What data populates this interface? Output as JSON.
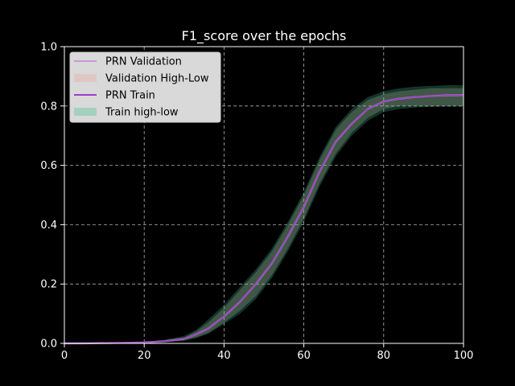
{
  "chart_data": {
    "type": "line",
    "title": "F1_score over the epochs",
    "xlabel": "",
    "ylabel": "",
    "xlim": [
      0,
      100
    ],
    "ylim": [
      0,
      1.0
    ],
    "x_ticks": [
      0,
      20,
      40,
      60,
      80,
      100
    ],
    "y_ticks": [
      0.0,
      0.2,
      0.4,
      0.6,
      0.8,
      1.0
    ],
    "x_tick_labels": [
      "0",
      "20",
      "40",
      "60",
      "80",
      "100"
    ],
    "y_tick_labels": [
      "0.0",
      "0.2",
      "0.4",
      "0.6",
      "0.8",
      "1.0"
    ],
    "grid": true,
    "legend_position": "top-left",
    "background": "#000000",
    "x": [
      0,
      5,
      10,
      15,
      20,
      25,
      30,
      33,
      36,
      40,
      44,
      48,
      52,
      56,
      60,
      64,
      68,
      72,
      76,
      80,
      84,
      88,
      92,
      96,
      100
    ],
    "series": [
      {
        "name": "PRN Validation",
        "kind": "line",
        "color": "#c78fd6",
        "values": [
          0.0,
          0.0,
          0.001,
          0.002,
          0.003,
          0.007,
          0.015,
          0.03,
          0.05,
          0.09,
          0.14,
          0.2,
          0.27,
          0.36,
          0.46,
          0.58,
          0.68,
          0.74,
          0.79,
          0.815,
          0.825,
          0.83,
          0.834,
          0.836,
          0.837
        ]
      },
      {
        "name": "Validation High-Low",
        "kind": "band",
        "color": "#e8a598",
        "low": [
          0.0,
          0.0,
          0.0,
          0.001,
          0.002,
          0.005,
          0.01,
          0.02,
          0.035,
          0.07,
          0.11,
          0.16,
          0.23,
          0.32,
          0.42,
          0.54,
          0.64,
          0.71,
          0.76,
          0.79,
          0.8,
          0.8,
          0.8,
          0.8,
          0.8
        ],
        "high": [
          0.001,
          0.001,
          0.002,
          0.003,
          0.005,
          0.01,
          0.02,
          0.04,
          0.07,
          0.12,
          0.18,
          0.24,
          0.31,
          0.4,
          0.5,
          0.62,
          0.72,
          0.78,
          0.82,
          0.84,
          0.85,
          0.855,
          0.86,
          0.86,
          0.86
        ]
      },
      {
        "name": "PRN Train",
        "kind": "line",
        "color": "#9a3fc7",
        "values": [
          0.0,
          0.0,
          0.001,
          0.002,
          0.003,
          0.007,
          0.015,
          0.03,
          0.05,
          0.09,
          0.14,
          0.2,
          0.27,
          0.36,
          0.46,
          0.58,
          0.68,
          0.74,
          0.79,
          0.815,
          0.825,
          0.83,
          0.834,
          0.836,
          0.837
        ]
      },
      {
        "name": "Train high-low",
        "kind": "band",
        "color": "#3fbf8f",
        "low": [
          0.0,
          0.0,
          0.0,
          0.001,
          0.002,
          0.004,
          0.009,
          0.018,
          0.032,
          0.065,
          0.1,
          0.15,
          0.22,
          0.31,
          0.41,
          0.53,
          0.63,
          0.7,
          0.75,
          0.78,
          0.79,
          0.795,
          0.797,
          0.798,
          0.798
        ],
        "high": [
          0.001,
          0.001,
          0.002,
          0.003,
          0.006,
          0.012,
          0.025,
          0.045,
          0.08,
          0.13,
          0.19,
          0.25,
          0.32,
          0.41,
          0.51,
          0.63,
          0.73,
          0.79,
          0.83,
          0.85,
          0.86,
          0.865,
          0.868,
          0.87,
          0.87
        ]
      }
    ]
  }
}
